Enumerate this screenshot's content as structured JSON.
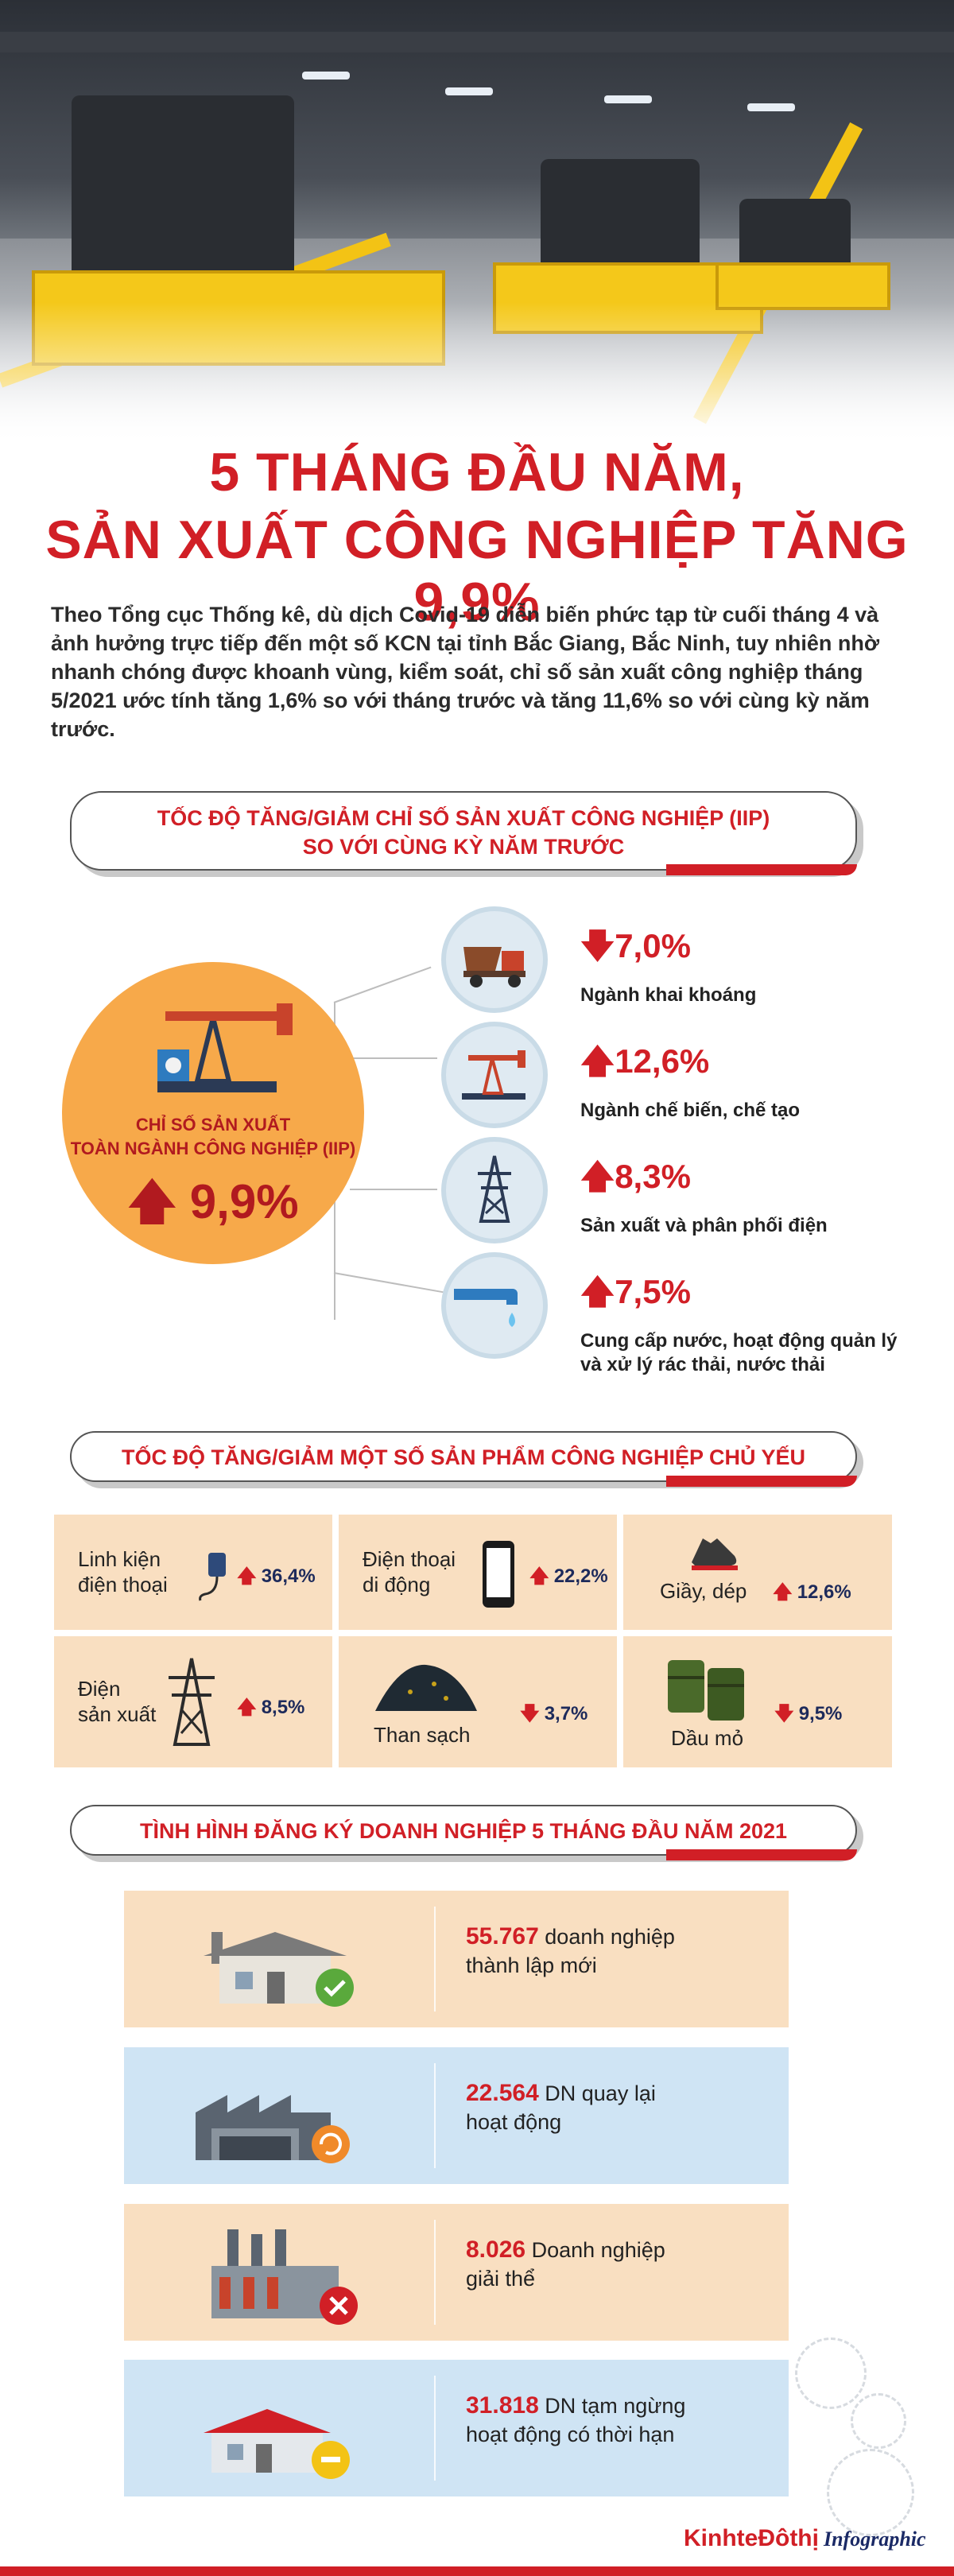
{
  "title": {
    "line1": "5 THÁNG ĐẦU NĂM,",
    "line2": "SẢN XUẤT CÔNG NGHIỆP TĂNG 9,9%"
  },
  "intro": "Theo Tổng cục Thống kê, dù dịch Covid-19 diễn biến phức tạp từ cuối tháng 4 và ảnh hưởng trực tiếp đến một số KCN tại tỉnh Bắc Giang, Bắc Ninh, tuy nhiên nhờ nhanh chóng được khoanh vùng, kiểm soát, chỉ số sản xuất công nghiệp tháng 5/2021 ước tính tăng 1,6% so với tháng trước và tăng 11,6% so với cùng kỳ năm trước.",
  "section1": {
    "heading_line1": "TỐC ĐỘ TĂNG/GIẢM CHỈ SỐ SẢN XUẤT CÔNG NGHIỆP (IIP)",
    "heading_line2": "SO VỚI CÙNG KỲ NĂM TRƯỚC",
    "overall_label1": "CHỈ SỐ SẢN XUẤT",
    "overall_label2": "TOÀN NGÀNH CÔNG NGHIỆP (IIP)",
    "overall_value": "9,9%",
    "overall_arrow": "🡅",
    "items": [
      {
        "arrow": "🡇",
        "value": "7,0%",
        "label": "Ngành khai khoáng",
        "icon": "truck-icon"
      },
      {
        "arrow": "🡅",
        "value": "12,6%",
        "label": "Ngành chế biến, chế tạo",
        "icon": "oil-pump-icon"
      },
      {
        "arrow": "🡅",
        "value": "8,3%",
        "label": "Sản xuất và phân phối điện",
        "icon": "power-tower-icon"
      },
      {
        "arrow": "🡅",
        "value": "7,5%",
        "label": "Cung cấp nước, hoạt động quản lý",
        "label2": "và xử lý rác thải, nước thải",
        "icon": "water-tap-icon"
      }
    ]
  },
  "section2": {
    "heading": "TỐC ĐỘ TĂNG/GIẢM MỘT SỐ SẢN PHẨM CÔNG NGHIỆP CHỦ YẾU",
    "products": [
      {
        "name1": "Linh kiện",
        "name2": "điện thoại",
        "arrow": "🡅",
        "value": "36,4%",
        "icon": "phone-charger-icon"
      },
      {
        "name1": "Điện thoại",
        "name2": "di động",
        "arrow": "🡅",
        "value": "22,2%",
        "icon": "mobile-phone-icon"
      },
      {
        "name1": "Giầy, dép",
        "name2": "",
        "arrow": "🡅",
        "value": "12,6%",
        "icon": "shoe-icon"
      },
      {
        "name1": "Điện",
        "name2": "sản xuất",
        "arrow": "🡅",
        "value": "8,5%",
        "icon": "power-tower-icon"
      },
      {
        "name1": "Than sạch",
        "name2": "",
        "arrow": "🡇",
        "value": "3,7%",
        "icon": "coal-pile-icon"
      },
      {
        "name1": "Dầu mỏ",
        "name2": "",
        "arrow": "🡇",
        "value": "9,5%",
        "icon": "oil-barrels-icon"
      }
    ]
  },
  "section3": {
    "heading": "TÌNH HÌNH ĐĂNG KÝ DOANH NGHIỆP 5 THÁNG ĐẦU NĂM 2021",
    "rows": [
      {
        "num": "55.767",
        "text1": "doanh nghiệp",
        "text2": "thành lập mới",
        "bg": "#f9dfc1",
        "icon": "new-factory-icon"
      },
      {
        "num": "22.564",
        "text1": "DN quay lại",
        "text2": "hoạt động",
        "bg": "#cfe4f4",
        "icon": "restart-factory-icon"
      },
      {
        "num": "8.026",
        "text1": "Doanh nghiệp",
        "text2": "giải thể",
        "bg": "#f9dfc1",
        "icon": "closed-factory-icon"
      },
      {
        "num": "31.818",
        "text1": "DN tạm ngừng",
        "text2": "hoạt động có thời hạn",
        "bg": "#cfe4f4",
        "icon": "paused-factory-icon"
      }
    ]
  },
  "brand": {
    "name": "KinhteĐôthị",
    "suffix": "Infographic"
  },
  "colors": {
    "accent": "#d11f26",
    "orange": "#f7a94a",
    "peach": "#f9dfc1",
    "lightblue": "#cfe4f4",
    "navy": "#1d2a5b"
  }
}
